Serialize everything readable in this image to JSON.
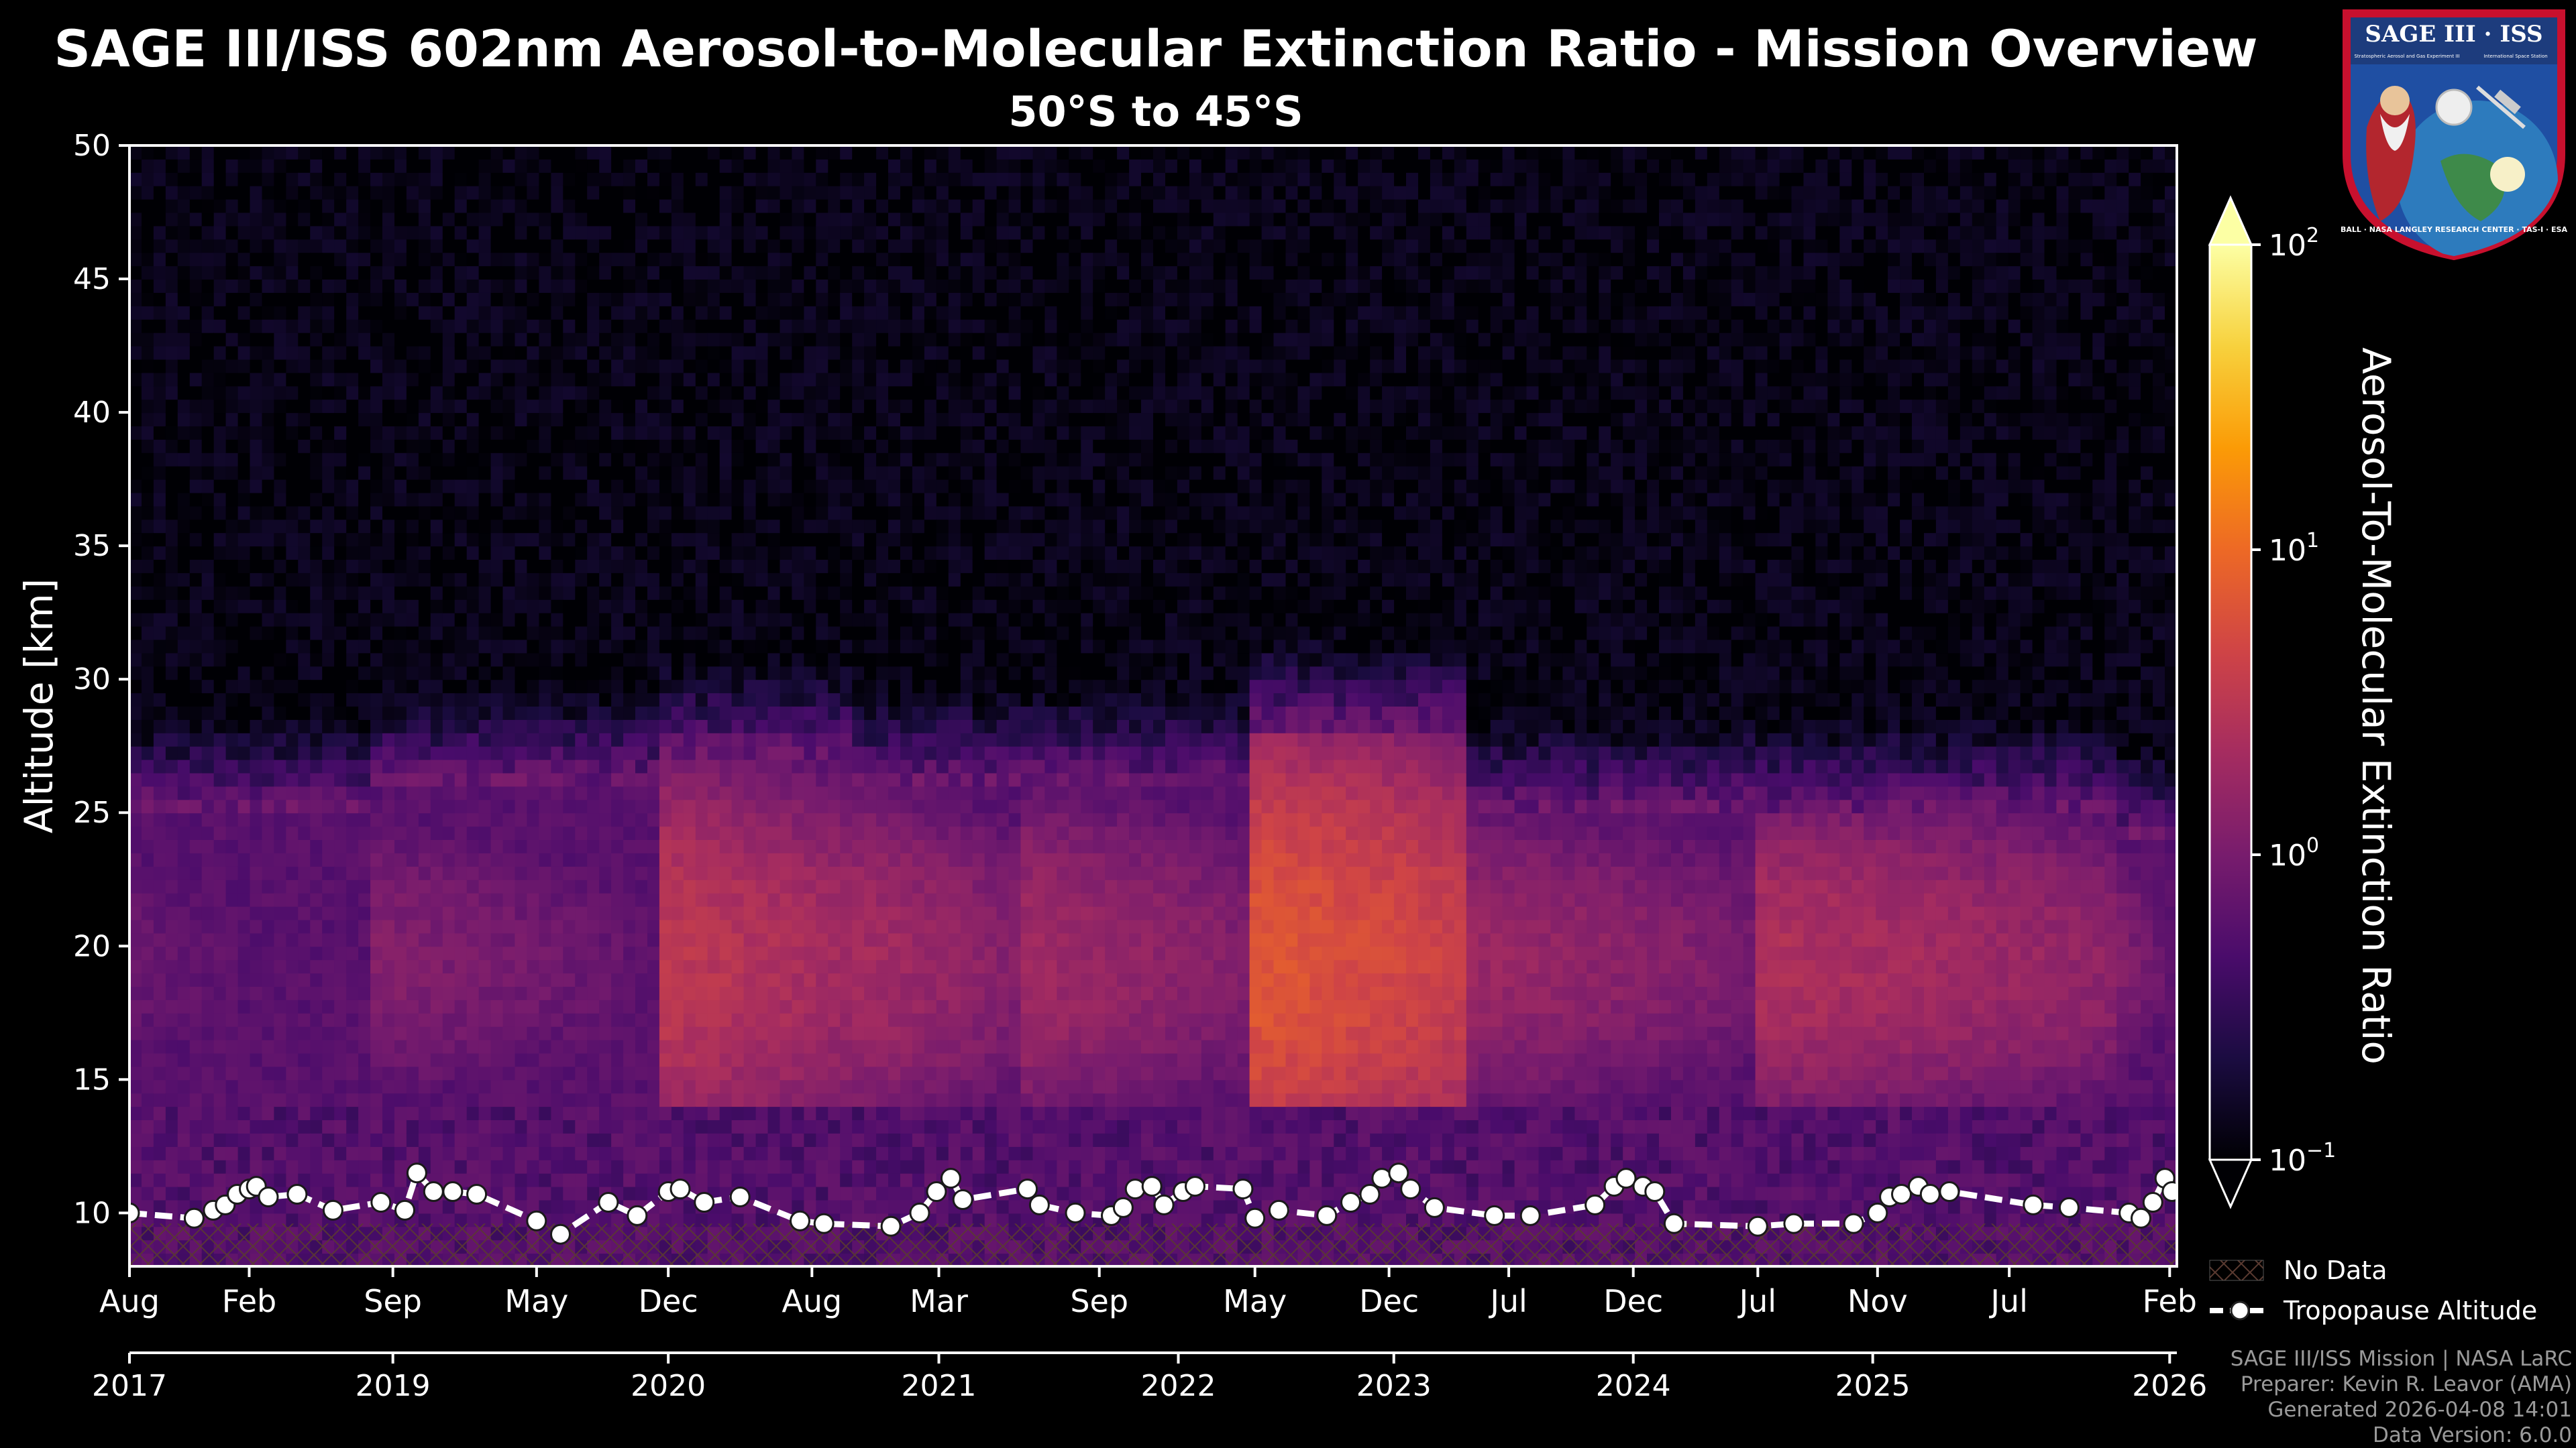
{
  "chart_data": {
    "type": "heatmap",
    "title": "SAGE III/ISS 602nm Aerosol-to-Molecular Extinction Ratio - Mission Overview",
    "subtitle": "50°S to 45°S",
    "ylabel": "Altitude [km]",
    "ylim": [
      8,
      50
    ],
    "y_ticks": [
      10,
      15,
      20,
      25,
      30,
      35,
      40,
      45,
      50
    ],
    "xlim": [
      2017.6,
      2026.15
    ],
    "month_ticks": [
      {
        "t": 2017.6,
        "label": "Aug"
      },
      {
        "t": 2018.1,
        "label": "Feb"
      },
      {
        "t": 2018.7,
        "label": "Sep"
      },
      {
        "t": 2019.3,
        "label": "May"
      },
      {
        "t": 2019.85,
        "label": "Dec"
      },
      {
        "t": 2020.45,
        "label": "Aug"
      },
      {
        "t": 2020.98,
        "label": "Mar"
      },
      {
        "t": 2021.65,
        "label": "Sep"
      },
      {
        "t": 2022.3,
        "label": "May"
      },
      {
        "t": 2022.86,
        "label": "Dec"
      },
      {
        "t": 2023.36,
        "label": "Jul"
      },
      {
        "t": 2023.88,
        "label": "Dec"
      },
      {
        "t": 2024.4,
        "label": "Jul"
      },
      {
        "t": 2024.9,
        "label": "Nov"
      },
      {
        "t": 2025.45,
        "label": "Jul"
      },
      {
        "t": 2026.12,
        "label": "Feb"
      }
    ],
    "year_ticks": [
      {
        "t": 2017.6,
        "label": "2017"
      },
      {
        "t": 2018.7,
        "label": "2019"
      },
      {
        "t": 2019.85,
        "label": "2020"
      },
      {
        "t": 2020.98,
        "label": "2021"
      },
      {
        "t": 2021.98,
        "label": "2022"
      },
      {
        "t": 2022.88,
        "label": "2023"
      },
      {
        "t": 2023.88,
        "label": "2024"
      },
      {
        "t": 2024.88,
        "label": "2025"
      },
      {
        "t": 2026.12,
        "label": "2026"
      }
    ],
    "colorbar": {
      "label": "Aerosol-To-Molecular Extinction Ratio",
      "scale": "log",
      "range": [
        0.1,
        100
      ],
      "ticks": [
        {
          "base": "10",
          "exp": "−1"
        },
        {
          "base": "10",
          "exp": "0"
        },
        {
          "base": "10",
          "exp": "1"
        },
        {
          "base": "10",
          "exp": "2"
        }
      ],
      "colors": [
        "#000004",
        "#1b0c41",
        "#4a0c6b",
        "#781c6d",
        "#a52c60",
        "#cf4446",
        "#ed6925",
        "#fb9b06",
        "#f7d13d",
        "#fcffa4"
      ]
    },
    "legend": {
      "placement": "lower-right-outside",
      "no_data": "No Data",
      "tropopause": "Tropopause Altitude"
    },
    "aerosol_episodes": [
      {
        "t0": 2017.6,
        "t1": 2018.6,
        "peak": 0.8,
        "top": 25
      },
      {
        "t0": 2018.6,
        "t1": 2019.82,
        "peak": 1.2,
        "top": 26
      },
      {
        "t0": 2019.82,
        "t1": 2020.6,
        "peak": 3.5,
        "top": 27
      },
      {
        "t0": 2020.6,
        "t1": 2021.3,
        "peak": 2.2,
        "top": 26
      },
      {
        "t0": 2021.3,
        "t1": 2022.3,
        "peak": 2.0,
        "top": 26
      },
      {
        "t0": 2022.3,
        "t1": 2023.2,
        "peak": 7.0,
        "top": 28
      },
      {
        "t0": 2023.2,
        "t1": 2024.4,
        "peak": 1.8,
        "top": 25
      },
      {
        "t0": 2024.4,
        "t1": 2025.9,
        "peak": 2.6,
        "top": 25
      },
      {
        "t0": 2025.9,
        "t1": 2026.15,
        "peak": 1.2,
        "top": 24
      }
    ],
    "tropopause": {
      "t": [
        2017.6,
        2017.87,
        2017.95,
        2018.0,
        2018.05,
        2018.1,
        2018.13,
        2018.18,
        2018.3,
        2018.45,
        2018.65,
        2018.75,
        2018.8,
        2018.87,
        2018.95,
        2019.05,
        2019.3,
        2019.4,
        2019.6,
        2019.72,
        2019.85,
        2019.9,
        2020.0,
        2020.15,
        2020.4,
        2020.5,
        2020.78,
        2020.9,
        2020.97,
        2021.03,
        2021.08,
        2021.35,
        2021.4,
        2021.55,
        2021.7,
        2021.75,
        2021.8,
        2021.87,
        2021.92,
        2022.0,
        2022.05,
        2022.25,
        2022.3,
        2022.4,
        2022.6,
        2022.7,
        2022.78,
        2022.83,
        2022.9,
        2022.95,
        2023.05,
        2023.3,
        2023.45,
        2023.72,
        2023.8,
        2023.85,
        2023.92,
        2023.97,
        2024.05,
        2024.4,
        2024.55,
        2024.8,
        2024.9,
        2024.95,
        2025.0,
        2025.07,
        2025.12,
        2025.2,
        2025.55,
        2025.7,
        2025.95,
        2026.0,
        2026.05,
        2026.1,
        2026.13
      ],
      "alt": [
        10.0,
        9.8,
        10.1,
        10.3,
        10.7,
        10.9,
        11.0,
        10.6,
        10.7,
        10.1,
        10.4,
        10.1,
        11.5,
        10.8,
        10.8,
        10.7,
        9.7,
        9.2,
        10.4,
        9.9,
        10.8,
        10.9,
        10.4,
        10.6,
        9.7,
        9.6,
        9.5,
        10.0,
        10.8,
        11.3,
        10.5,
        10.9,
        10.3,
        10.0,
        9.9,
        10.2,
        10.9,
        11.0,
        10.3,
        10.8,
        11.0,
        10.9,
        9.8,
        10.1,
        9.9,
        10.4,
        10.7,
        11.3,
        11.5,
        10.9,
        10.2,
        9.9,
        9.9,
        10.3,
        11.0,
        11.3,
        11.0,
        10.8,
        9.6,
        9.5,
        9.6,
        9.6,
        10.0,
        10.6,
        10.7,
        11.0,
        10.7,
        10.8,
        10.3,
        10.2,
        10.0,
        9.8,
        10.4,
        11.3,
        10.8
      ]
    }
  },
  "credits": {
    "line1": "SAGE III/ISS Mission | NASA LaRC",
    "line2": "Preparer: Kevin R. Leavor (AMA)",
    "line3": "Generated 2026-04-08 14:01",
    "line4": "Data Version: 6.0.0"
  },
  "logo": {
    "title": "SAGE III · ISS",
    "sub_left": "Stratospheric Aerosol and Gas Experiment III",
    "sub_right": "International Space Station",
    "ring_text": "BALL · NASA LANGLEY RESEARCH CENTER · TAS-I · ESA"
  }
}
